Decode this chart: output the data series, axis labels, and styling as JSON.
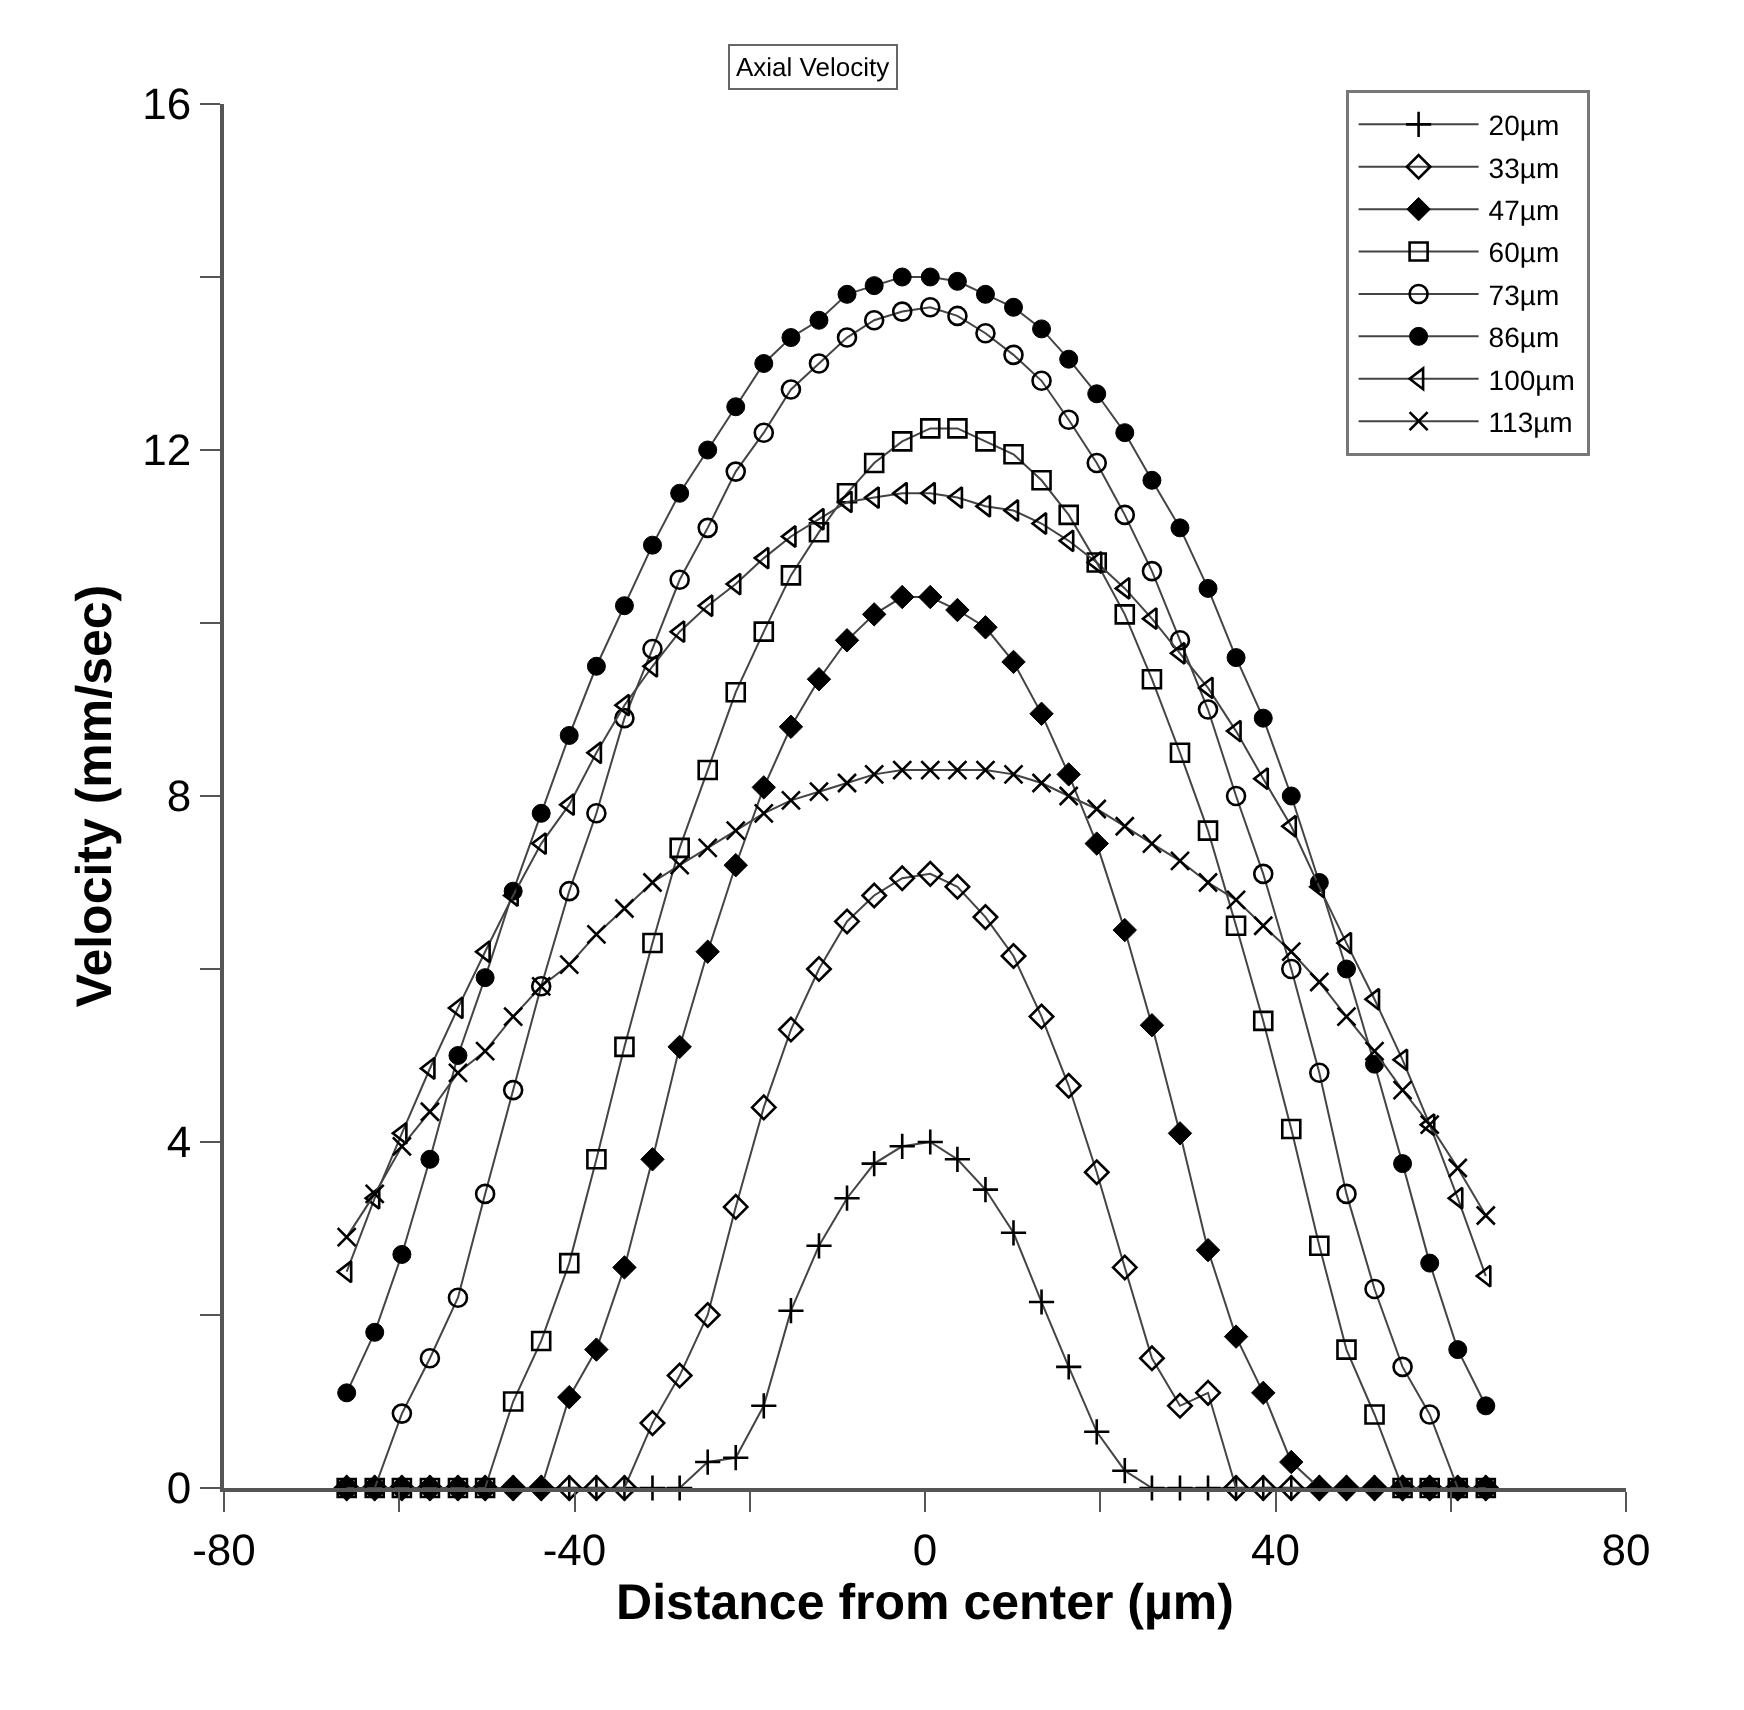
{
  "chart_data": {
    "type": "line",
    "title": "Axial Velocity",
    "xlabel": "Distance from center (µm)",
    "ylabel": "Velocity (mm/sec)",
    "x": [
      -66.0,
      -62.8,
      -59.7,
      -56.5,
      -53.3,
      -50.2,
      -47.0,
      -43.8,
      -40.6,
      -37.5,
      -34.3,
      -31.1,
      -28.0,
      -24.8,
      -21.6,
      -18.4,
      -15.3,
      -12.1,
      -8.9,
      -5.8,
      -2.6,
      0.6,
      3.7,
      6.9,
      10.1,
      13.3,
      16.4,
      19.6,
      22.8,
      25.9,
      29.1,
      32.3,
      35.5,
      38.6,
      41.8,
      45.0,
      48.1,
      51.3,
      54.5,
      57.6,
      60.8,
      64.0
    ],
    "xlim": [
      -80,
      80
    ],
    "xticks": [
      -80,
      {
        "value": -60,
        "label": null
      },
      -40,
      {
        "value": -20,
        "label": null
      },
      0,
      {
        "value": 20,
        "label": null
      },
      40,
      {
        "value": 60,
        "label": null
      },
      80
    ],
    "ylim": [
      0,
      16
    ],
    "yticks": [
      0,
      {
        "value": 2,
        "label": null
      },
      4,
      {
        "value": 6,
        "label": null
      },
      8,
      {
        "value": 10,
        "label": null
      },
      12,
      {
        "value": 14,
        "label": null
      },
      16
    ],
    "legend": "top right",
    "line_style": "solid",
    "series": [
      {
        "name": "20µm",
        "color": "#000000",
        "marker": "cross",
        "values": [
          0,
          0,
          0,
          0,
          0,
          0,
          0,
          0,
          0,
          0,
          0,
          0,
          0,
          0.3,
          0.35,
          0.95,
          2.05,
          2.8,
          3.35,
          3.75,
          3.95,
          4.0,
          3.8,
          3.45,
          2.95,
          2.15,
          1.4,
          0.65,
          0.2,
          0,
          0,
          0,
          0,
          0,
          0,
          0,
          0,
          0,
          0,
          0,
          0,
          0
        ]
      },
      {
        "name": "33µm",
        "color": "#000000",
        "marker": "diamond-open",
        "values": [
          0,
          0,
          0,
          0,
          0,
          0,
          0,
          0,
          0,
          0,
          0,
          0.75,
          1.3,
          2.0,
          3.25,
          4.4,
          5.3,
          6.0,
          6.55,
          6.85,
          7.05,
          7.1,
          6.95,
          6.6,
          6.15,
          5.45,
          4.65,
          3.65,
          2.55,
          1.5,
          0.95,
          1.1,
          0,
          0,
          0,
          0,
          0,
          0,
          0,
          0,
          0,
          0
        ]
      },
      {
        "name": "47µm",
        "color": "#000000",
        "marker": "diamond",
        "values": [
          0,
          0,
          0,
          0,
          0,
          0,
          0,
          0,
          1.05,
          1.6,
          2.55,
          3.8,
          5.1,
          6.2,
          7.2,
          8.1,
          8.8,
          9.35,
          9.8,
          10.1,
          10.3,
          10.3,
          10.15,
          9.95,
          9.55,
          8.95,
          8.25,
          7.45,
          6.45,
          5.35,
          4.1,
          2.75,
          1.75,
          1.1,
          0.3,
          0,
          0,
          0,
          0,
          0,
          0,
          0
        ]
      },
      {
        "name": "60µm",
        "color": "#000000",
        "marker": "square-open",
        "values": [
          0,
          0,
          0,
          0,
          0,
          0,
          1.0,
          1.7,
          2.6,
          3.8,
          5.1,
          6.3,
          7.4,
          8.3,
          9.2,
          9.9,
          10.55,
          11.05,
          11.5,
          11.85,
          12.1,
          12.25,
          12.25,
          12.1,
          11.95,
          11.65,
          11.25,
          10.7,
          10.1,
          9.35,
          8.5,
          7.6,
          6.5,
          5.4,
          4.15,
          2.8,
          1.6,
          0.85,
          0,
          0,
          0,
          0
        ]
      },
      {
        "name": "73µm",
        "color": "#000000",
        "marker": "circle-open",
        "values": [
          0,
          0,
          0.86,
          1.5,
          2.2,
          3.4,
          4.6,
          5.8,
          6.9,
          7.8,
          8.9,
          9.7,
          10.5,
          11.1,
          11.75,
          12.2,
          12.7,
          13.0,
          13.3,
          13.5,
          13.6,
          13.65,
          13.55,
          13.35,
          13.1,
          12.8,
          12.35,
          11.85,
          11.25,
          10.6,
          9.8,
          9.0,
          8.0,
          7.1,
          6.0,
          4.8,
          3.4,
          2.3,
          1.4,
          0.85,
          0,
          0
        ]
      },
      {
        "name": "86µm",
        "color": "#000000",
        "marker": "circle",
        "values": [
          1.1,
          1.8,
          2.7,
          3.8,
          5.0,
          5.9,
          6.9,
          7.8,
          8.7,
          9.5,
          10.2,
          10.9,
          11.5,
          12.0,
          12.5,
          13.0,
          13.3,
          13.5,
          13.8,
          13.9,
          14.0,
          14.0,
          13.95,
          13.8,
          13.65,
          13.4,
          13.05,
          12.65,
          12.2,
          11.65,
          11.1,
          10.4,
          9.6,
          8.9,
          8.0,
          7.0,
          6.0,
          4.9,
          3.75,
          2.6,
          1.6,
          0.95
        ]
      },
      {
        "name": "100µm",
        "color": "#000000",
        "marker": "triangle-open",
        "values": [
          2.5,
          3.35,
          4.1,
          4.85,
          5.55,
          6.2,
          6.85,
          7.45,
          7.9,
          8.5,
          9.05,
          9.5,
          9.9,
          10.2,
          10.45,
          10.75,
          11.0,
          11.2,
          11.4,
          11.45,
          11.5,
          11.5,
          11.45,
          11.35,
          11.3,
          11.15,
          10.95,
          10.7,
          10.4,
          10.05,
          9.65,
          9.25,
          8.75,
          8.2,
          7.65,
          6.95,
          6.3,
          5.65,
          4.95,
          4.2,
          3.35,
          2.45
        ]
      },
      {
        "name": "113µm",
        "color": "#000000",
        "marker": "x",
        "values": [
          2.9,
          3.4,
          3.95,
          4.35,
          4.8,
          5.05,
          5.45,
          5.8,
          6.05,
          6.4,
          6.7,
          7.0,
          7.2,
          7.4,
          7.6,
          7.8,
          7.95,
          8.05,
          8.15,
          8.25,
          8.3,
          8.3,
          8.3,
          8.3,
          8.25,
          8.15,
          8.0,
          7.85,
          7.65,
          7.45,
          7.25,
          7.0,
          6.8,
          6.5,
          6.2,
          5.85,
          5.45,
          5.05,
          4.6,
          4.2,
          3.7,
          3.15
        ]
      }
    ]
  }
}
